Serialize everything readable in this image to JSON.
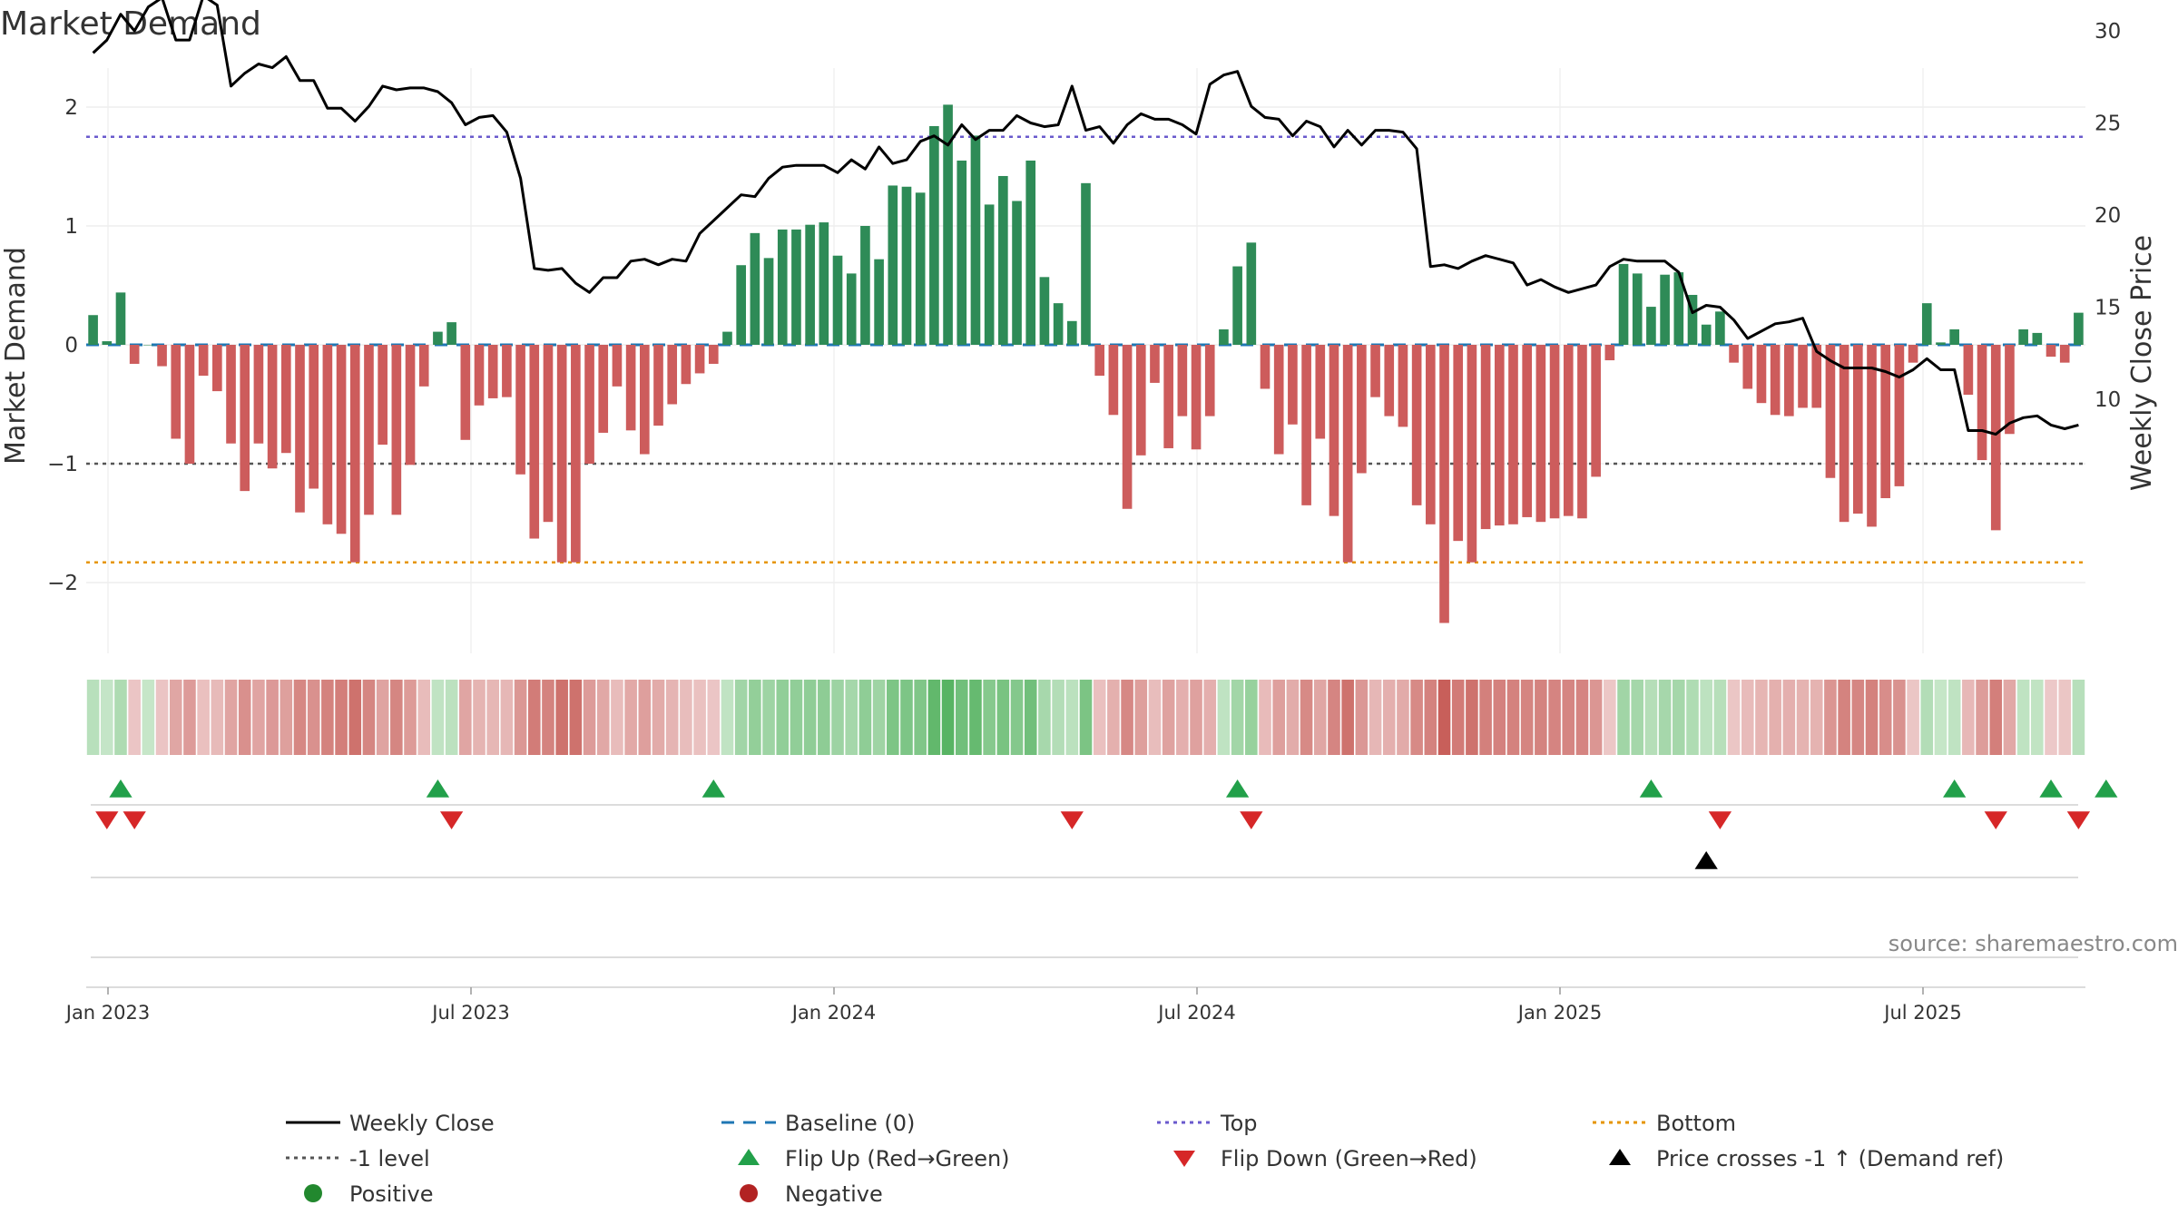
{
  "chart_data": {
    "type": "bar+line",
    "title": "Market Demand",
    "ylabel": "Market Demand",
    "y2label": "Weekly Close Price",
    "ylim": [
      -2.6,
      2.1
    ],
    "y2lim": [
      6.5,
      32.5
    ],
    "yticks": [
      "2",
      "1",
      "0",
      "−1",
      "−2"
    ],
    "y2ticks": [
      "30",
      "25",
      "20",
      "15",
      "10"
    ],
    "xtick_labels": [
      "Jan 2023",
      "Jul 2023",
      "Jan 2024",
      "Jul 2024",
      "Jan 2025",
      "Jul 2025"
    ],
    "reference_levels": {
      "top": 1.75,
      "baseline": 0,
      "minus_one": -1,
      "bottom": -1.83
    },
    "demand": [
      0.25,
      0.03,
      0.44,
      -0.16,
      0,
      -0.18,
      -0.79,
      -1.0,
      -0.26,
      -0.39,
      -0.83,
      -1.23,
      -0.83,
      -1.04,
      -0.91,
      -1.41,
      -1.21,
      -1.51,
      -1.59,
      -1.83,
      -1.43,
      -0.84,
      -1.43,
      -1.01,
      -0.35,
      0.11,
      0.19,
      -0.8,
      -0.51,
      -0.45,
      -0.44,
      -1.09,
      -1.63,
      -1.49,
      -1.83,
      -1.83,
      -1.0,
      -0.74,
      -0.35,
      -0.72,
      -0.92,
      -0.68,
      -0.5,
      -0.33,
      -0.24,
      -0.16,
      0.11,
      0.67,
      0.94,
      0.73,
      0.97,
      0.97,
      1.01,
      1.03,
      0.75,
      0.6,
      1.0,
      0.72,
      1.34,
      1.33,
      1.28,
      1.84,
      2.02,
      1.55,
      1.76,
      1.18,
      1.42,
      1.21,
      1.55,
      0.57,
      0.35,
      0.2,
      1.36,
      -0.26,
      -0.59,
      -1.38,
      -0.93,
      -0.32,
      -0.87,
      -0.6,
      -0.88,
      -0.6,
      0.13,
      0.66,
      0.86,
      -0.37,
      -0.92,
      -0.67,
      -1.35,
      -0.79,
      -1.44,
      -1.83,
      -1.08,
      -0.44,
      -0.6,
      -0.69,
      -1.35,
      -1.51,
      -2.34,
      -1.65,
      -1.83,
      -1.55,
      -1.52,
      -1.51,
      -1.45,
      -1.49,
      -1.46,
      -1.44,
      -1.46,
      -1.11,
      -0.13,
      0.68,
      0.6,
      0.32,
      0.59,
      0.61,
      0.42,
      0.17,
      0.28,
      -0.15,
      -0.37,
      -0.49,
      -0.59,
      -0.6,
      -0.53,
      -0.53,
      -1.12,
      -1.49,
      -1.42,
      -1.53,
      -1.29,
      -1.19,
      -0.15,
      0.35,
      0.02,
      0.13,
      -0.42,
      -0.97,
      -1.56,
      -0.75,
      0.13,
      0.1,
      -0.1,
      -0.15,
      0.27
    ],
    "close": [
      28.8,
      29.5,
      30.9,
      30.0,
      31.3,
      31.8,
      29.5,
      29.5,
      31.9,
      31.4,
      27.0,
      27.7,
      28.2,
      28.0,
      28.6,
      27.3,
      27.3,
      25.8,
      25.8,
      25.1,
      25.9,
      27.0,
      26.8,
      26.9,
      26.9,
      26.7,
      26.1,
      24.9,
      25.3,
      25.4,
      24.5,
      22.0,
      17.1,
      17.0,
      17.1,
      16.3,
      15.8,
      16.6,
      16.6,
      17.5,
      17.6,
      17.3,
      17.6,
      17.5,
      19.0,
      19.7,
      20.4,
      21.1,
      21.0,
      22.0,
      22.6,
      22.7,
      22.7,
      22.7,
      22.3,
      23.0,
      22.5,
      23.7,
      22.8,
      23.0,
      24.0,
      24.3,
      23.8,
      24.9,
      24.1,
      24.6,
      24.6,
      25.4,
      25.0,
      24.8,
      24.9,
      27.0,
      24.6,
      24.8,
      23.9,
      24.9,
      25.5,
      25.2,
      25.2,
      24.9,
      24.4,
      27.1,
      27.6,
      27.8,
      25.9,
      25.3,
      25.2,
      24.3,
      25.1,
      24.8,
      23.7,
      24.6,
      23.8,
      24.6,
      24.6,
      24.5,
      23.6,
      17.2,
      17.3,
      17.1,
      17.5,
      17.8,
      17.6,
      17.4,
      16.2,
      16.5,
      16.1,
      15.8,
      16.0,
      16.2,
      17.2,
      17.6,
      17.5,
      17.5,
      17.5,
      16.9,
      14.7,
      15.1,
      15.0,
      14.3,
      13.3,
      13.7,
      14.1,
      14.2,
      14.4,
      12.6,
      12.1,
      11.7,
      11.7,
      11.7,
      11.5,
      11.2,
      11.6,
      12.2,
      11.6,
      11.6,
      8.3,
      8.3,
      8.1,
      8.7,
      9.0,
      9.1,
      8.6,
      8.4,
      8.6
    ],
    "flip_up": [
      2,
      25,
      45,
      83,
      113,
      135,
      142,
      146
    ],
    "flip_down": [
      1,
      3,
      26,
      71,
      84,
      118,
      138,
      144
    ],
    "price_cross": [
      117
    ],
    "legend": [
      {
        "label": "Weekly Close",
        "marker": "line",
        "color": "#000000"
      },
      {
        "label": "Baseline (0)",
        "marker": "dash",
        "color": "#1f77b4"
      },
      {
        "label": "Top",
        "marker": "dot",
        "color": "#6a5acd"
      },
      {
        "label": "Bottom",
        "marker": "dot",
        "color": "#e69500"
      },
      {
        "label": "-1 level",
        "marker": "dot",
        "color": "#555555"
      },
      {
        "label": "Flip Up (Red→Green)",
        "marker": "triangle-up",
        "color": "#22a04a"
      },
      {
        "label": "Flip Down (Green→Red)",
        "marker": "triangle-down",
        "color": "#d62728"
      },
      {
        "label": "Price crosses -1 ↑ (Demand ref)",
        "marker": "triangle-up",
        "color": "#000000"
      },
      {
        "label": "Positive",
        "marker": "circle",
        "color": "#22882e"
      },
      {
        "label": "Negative",
        "marker": "circle",
        "color": "#b22222"
      }
    ]
  },
  "source": "source: sharemaestro.com"
}
